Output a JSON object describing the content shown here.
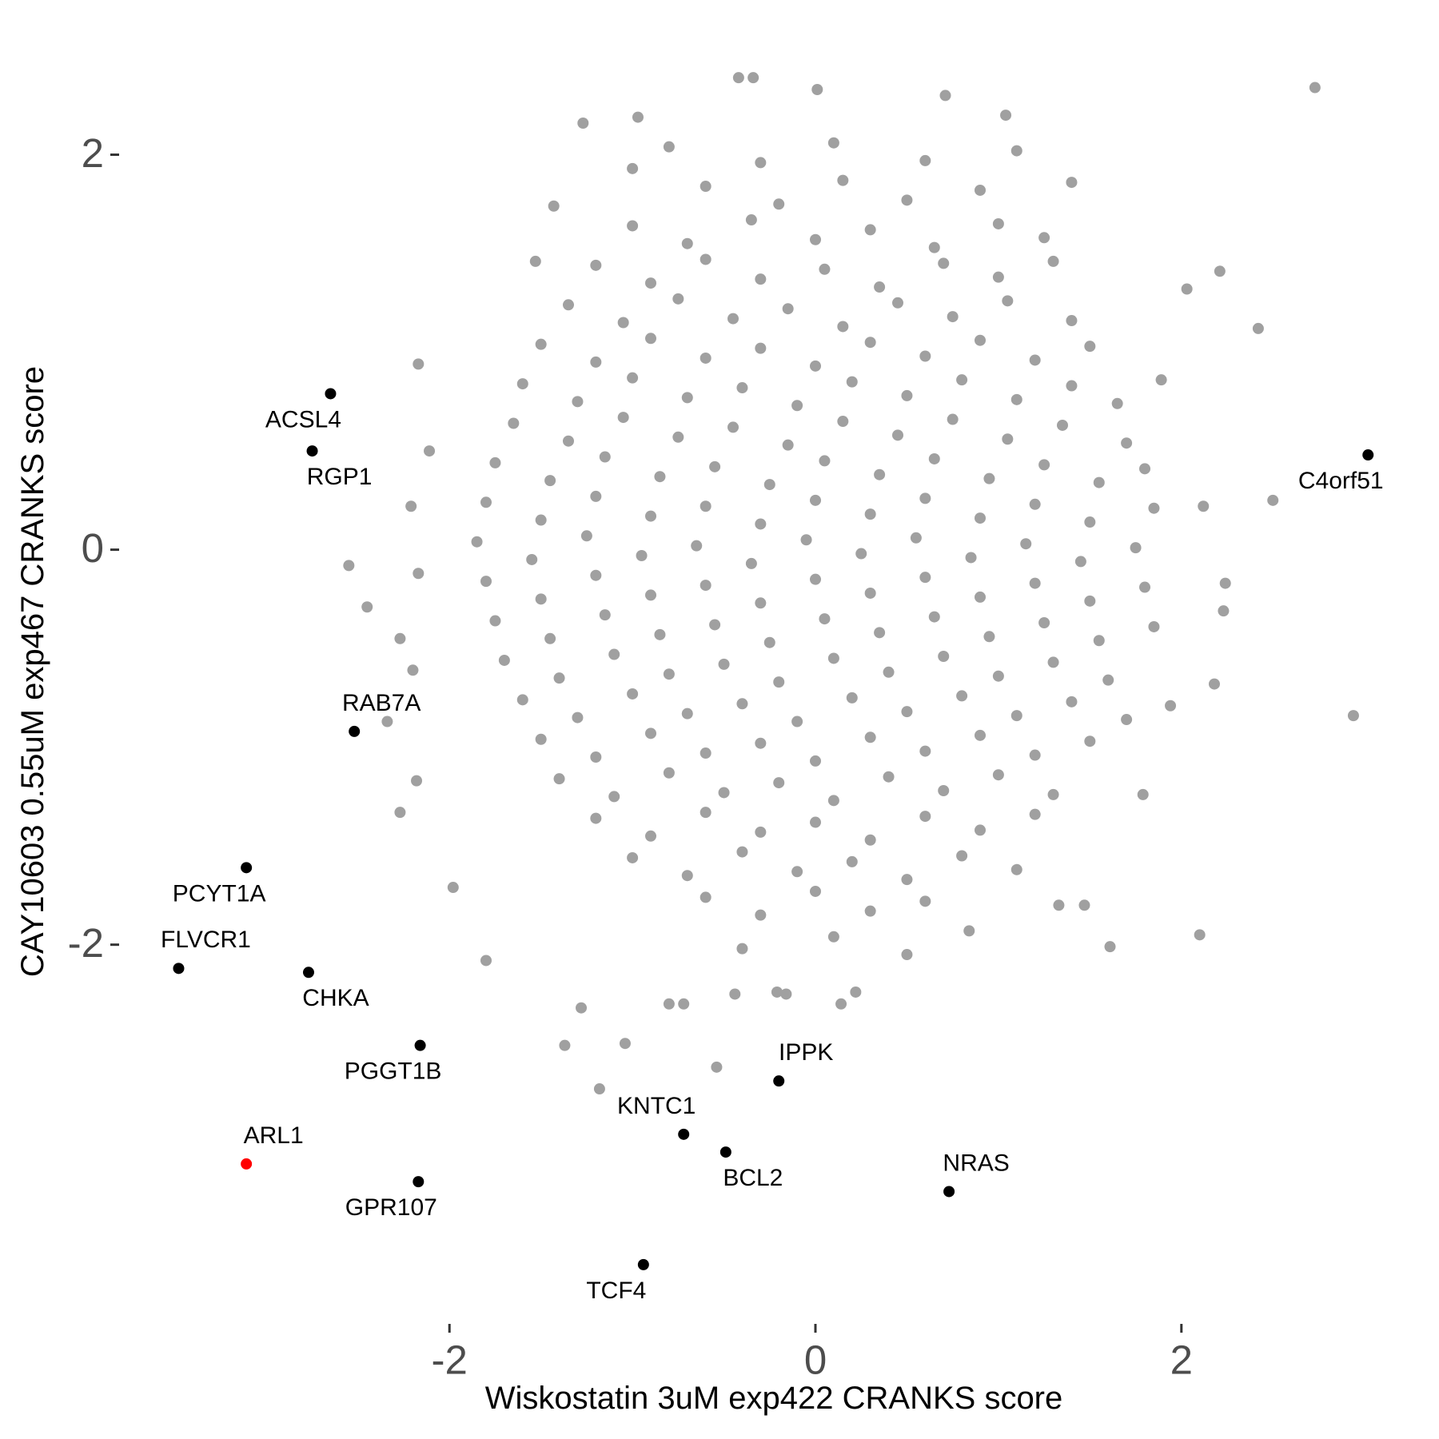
{
  "chart_data": {
    "type": "scatter",
    "x_label": "Wiskostatin 3uM exp422 CRANKS score",
    "y_label": "CAY10603 0.55uM exp467 CRANKS score",
    "xlim": [
      -3.6,
      3.15
    ],
    "ylim": [
      -3.75,
      2.5
    ],
    "xticks": [
      -2,
      0,
      2
    ],
    "yticks": [
      -2,
      0,
      2
    ],
    "grid": false,
    "series": [
      {
        "color": "#a0a0a0",
        "x": [
          -0.8,
          -0.3,
          0.1,
          0.6,
          1.1,
          -0.6,
          -0.2,
          0.15,
          0.5,
          0.9,
          -1.0,
          -0.7,
          -0.35,
          0.0,
          0.3,
          0.65,
          1.0,
          1.25,
          -1.2,
          -0.9,
          -0.6,
          -0.3,
          0.05,
          0.35,
          0.7,
          1.0,
          1.3,
          -1.35,
          -1.05,
          -0.75,
          -0.45,
          -0.15,
          0.15,
          0.45,
          0.75,
          1.05,
          1.4,
          -1.5,
          -1.2,
          -0.9,
          -0.6,
          -0.3,
          0.0,
          0.3,
          0.6,
          0.9,
          1.2,
          1.5,
          -1.6,
          -1.3,
          -1.0,
          -0.7,
          -0.4,
          -0.1,
          0.2,
          0.5,
          0.8,
          1.1,
          1.4,
          1.65,
          -1.65,
          -1.35,
          -1.05,
          -0.75,
          -0.45,
          -0.15,
          0.15,
          0.45,
          0.75,
          1.05,
          1.35,
          1.7,
          -1.75,
          -1.45,
          -1.15,
          -0.85,
          -0.55,
          -0.25,
          0.05,
          0.35,
          0.65,
          0.95,
          1.25,
          1.55,
          1.8,
          -1.8,
          -1.5,
          -1.2,
          -0.9,
          -0.6,
          -0.3,
          0.0,
          0.3,
          0.6,
          0.9,
          1.2,
          1.5,
          1.85,
          -1.85,
          -1.55,
          -1.25,
          -0.95,
          -0.65,
          -0.35,
          -0.05,
          0.25,
          0.55,
          0.85,
          1.15,
          1.45,
          1.75,
          -1.8,
          -1.5,
          -1.2,
          -0.9,
          -0.6,
          -0.3,
          0.0,
          0.3,
          0.6,
          0.9,
          1.2,
          1.5,
          1.8,
          -1.75,
          -1.45,
          -1.15,
          -0.85,
          -0.55,
          -0.25,
          0.05,
          0.35,
          0.65,
          0.95,
          1.25,
          1.55,
          1.85,
          -1.7,
          -1.4,
          -1.1,
          -0.8,
          -0.5,
          -0.2,
          0.1,
          0.4,
          0.7,
          1.0,
          1.3,
          1.6,
          -1.6,
          -1.3,
          -1.0,
          -0.7,
          -0.4,
          -0.1,
          0.2,
          0.5,
          0.8,
          1.1,
          1.4,
          1.7,
          -1.5,
          -1.2,
          -0.9,
          -0.6,
          -0.3,
          0.0,
          0.3,
          0.6,
          0.9,
          1.2,
          1.5,
          -1.4,
          -1.1,
          -0.8,
          -0.5,
          -0.2,
          0.1,
          0.4,
          0.7,
          1.0,
          1.3,
          -1.2,
          -0.9,
          -0.6,
          -0.3,
          0.0,
          0.3,
          0.6,
          0.9,
          1.2,
          -1.0,
          -0.7,
          -0.4,
          -0.1,
          0.2,
          0.5,
          0.8,
          1.1,
          -0.6,
          -0.3,
          0.0,
          0.3,
          0.6,
          -0.4,
          0.1,
          0.5,
          2.73,
          2.94,
          2.5,
          2.42,
          2.21,
          2.03,
          2.1,
          1.61,
          1.79,
          1.94,
          2.18,
          2.23,
          2.24,
          2.12,
          1.89,
          1.4,
          1.04,
          0.71,
          0.01,
          -0.34,
          -0.42,
          -0.97,
          -1.27,
          -1.0,
          -1.43,
          -1.53,
          -2.17,
          -2.11,
          -2.21,
          -2.55,
          -2.45,
          -2.17,
          -2.27,
          -2.2,
          -2.34,
          -2.18,
          -2.27,
          -1.98,
          -1.8,
          -1.28,
          -1.37,
          -1.04,
          -1.18,
          -0.8,
          -0.72,
          -0.54,
          -0.44,
          -0.21,
          -0.16,
          0.14,
          0.22,
          0.84,
          1.33,
          1.47
        ],
        "values": [
          2.04,
          1.96,
          2.06,
          1.97,
          2.02,
          1.84,
          1.75,
          1.87,
          1.77,
          1.82,
          1.64,
          1.55,
          1.67,
          1.57,
          1.62,
          1.53,
          1.65,
          1.58,
          1.44,
          1.35,
          1.47,
          1.37,
          1.42,
          1.33,
          1.45,
          1.38,
          1.46,
          1.24,
          1.15,
          1.27,
          1.17,
          1.22,
          1.13,
          1.25,
          1.18,
          1.26,
          1.16,
          1.04,
          0.95,
          1.07,
          0.97,
          1.02,
          0.93,
          1.05,
          0.98,
          1.06,
          0.96,
          1.03,
          0.84,
          0.75,
          0.87,
          0.77,
          0.82,
          0.73,
          0.85,
          0.78,
          0.86,
          0.76,
          0.83,
          0.74,
          0.64,
          0.55,
          0.67,
          0.57,
          0.62,
          0.53,
          0.65,
          0.58,
          0.66,
          0.56,
          0.63,
          0.54,
          0.44,
          0.35,
          0.47,
          0.37,
          0.42,
          0.33,
          0.45,
          0.38,
          0.46,
          0.36,
          0.43,
          0.34,
          0.41,
          0.24,
          0.15,
          0.27,
          0.17,
          0.22,
          0.13,
          0.25,
          0.18,
          0.26,
          0.16,
          0.23,
          0.14,
          0.21,
          0.04,
          -0.05,
          0.07,
          -0.03,
          0.02,
          -0.07,
          0.05,
          -0.02,
          0.06,
          -0.04,
          0.03,
          -0.06,
          0.01,
          -0.16,
          -0.25,
          -0.13,
          -0.23,
          -0.18,
          -0.27,
          -0.15,
          -0.22,
          -0.14,
          -0.24,
          -0.17,
          -0.26,
          -0.19,
          -0.36,
          -0.45,
          -0.33,
          -0.43,
          -0.38,
          -0.47,
          -0.35,
          -0.42,
          -0.34,
          -0.44,
          -0.37,
          -0.46,
          -0.39,
          -0.56,
          -0.65,
          -0.53,
          -0.63,
          -0.58,
          -0.67,
          -0.55,
          -0.62,
          -0.54,
          -0.64,
          -0.57,
          -0.66,
          -0.76,
          -0.85,
          -0.73,
          -0.83,
          -0.78,
          -0.87,
          -0.75,
          -0.82,
          -0.74,
          -0.84,
          -0.77,
          -0.86,
          -0.96,
          -1.05,
          -0.93,
          -1.03,
          -0.98,
          -1.07,
          -0.95,
          -1.02,
          -0.94,
          -1.04,
          -0.97,
          -1.16,
          -1.25,
          -1.13,
          -1.23,
          -1.18,
          -1.27,
          -1.15,
          -1.22,
          -1.14,
          -1.24,
          -1.36,
          -1.45,
          -1.33,
          -1.43,
          -1.38,
          -1.47,
          -1.35,
          -1.42,
          -1.34,
          -1.56,
          -1.65,
          -1.53,
          -1.63,
          -1.58,
          -1.67,
          -1.55,
          -1.62,
          -1.76,
          -1.85,
          -1.73,
          -1.83,
          -1.78,
          -2.02,
          -1.96,
          -2.05,
          2.34,
          -0.84,
          0.25,
          1.12,
          1.41,
          1.32,
          -1.95,
          -2.01,
          -1.24,
          -0.79,
          -0.68,
          -0.31,
          -0.17,
          0.22,
          0.86,
          1.86,
          2.2,
          2.3,
          2.33,
          2.39,
          2.39,
          2.19,
          2.16,
          1.93,
          1.74,
          1.46,
          0.94,
          0.5,
          0.22,
          -0.08,
          -0.29,
          -0.12,
          -0.45,
          -0.61,
          -0.87,
          -1.17,
          -1.33,
          -1.71,
          -2.08,
          -2.32,
          -2.51,
          -2.5,
          -2.73,
          -2.3,
          -2.3,
          -2.62,
          -2.25,
          -2.24,
          -2.25,
          -2.3,
          -2.24,
          -1.93,
          -1.8,
          -1.8
        ]
      },
      {
        "color": "#000000",
        "labels": [
          "ACSL4",
          "RGP1",
          "RAB7A",
          "PCYT1A",
          "FLVCR1",
          "CHKA",
          "PGGT1B",
          "GPR107",
          "KNTC1",
          "BCL2",
          "IPPK",
          "NRAS",
          "TCF4",
          "C4orf51"
        ],
        "x": [
          -2.65,
          -2.75,
          -2.52,
          -3.11,
          -3.48,
          -2.77,
          -2.16,
          -2.17,
          -0.72,
          -0.49,
          -0.2,
          0.73,
          -0.94,
          3.02
        ],
        "values": [
          0.79,
          0.5,
          -0.92,
          -1.61,
          -2.12,
          -2.14,
          -2.51,
          -3.2,
          -2.96,
          -3.05,
          -2.69,
          -3.25,
          -3.62,
          0.48
        ]
      },
      {
        "color": "#ff0000",
        "labels": [
          "ARL1"
        ],
        "x": [
          -3.11
        ],
        "values": [
          -3.11
        ]
      }
    ]
  }
}
